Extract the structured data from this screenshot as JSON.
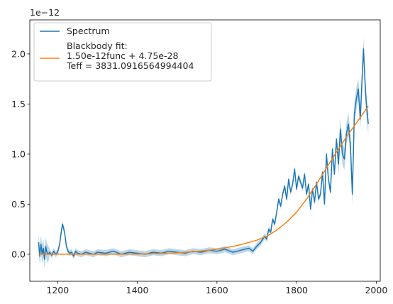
{
  "chart_data": {
    "type": "line",
    "title": "",
    "xlabel": "",
    "ylabel": "",
    "xlim": [
      1130,
      2010
    ],
    "ylim": [
      -0.27,
      2.34
    ],
    "y_scale_exponent": "1e−12",
    "x_ticks": [
      1200,
      1400,
      1600,
      1800,
      2000
    ],
    "x_tick_labels": [
      "1200",
      "1400",
      "1600",
      "1800",
      "2000"
    ],
    "y_ticks": [
      0.0,
      0.5,
      1.0,
      1.5,
      2.0
    ],
    "y_tick_labels": [
      "0.0",
      "0.5",
      "1.0",
      "1.5",
      "2.0"
    ],
    "grid": false,
    "legend_position": "top-left",
    "series": [
      {
        "name": "Spectrum",
        "color": "#1f77b4",
        "uncertainty_band": true,
        "x": [
          1152,
          1155,
          1158,
          1161,
          1164,
          1167,
          1170,
          1173,
          1176,
          1180,
          1185,
          1190,
          1195,
          1200,
          1205,
          1209,
          1212,
          1215,
          1218,
          1222,
          1226,
          1230,
          1235,
          1240,
          1245,
          1250,
          1260,
          1270,
          1280,
          1290,
          1300,
          1320,
          1340,
          1360,
          1380,
          1400,
          1420,
          1440,
          1460,
          1480,
          1500,
          1520,
          1540,
          1560,
          1580,
          1600,
          1620,
          1640,
          1660,
          1680,
          1690,
          1700,
          1710,
          1720,
          1725,
          1730,
          1735,
          1740,
          1745,
          1750,
          1755,
          1760,
          1765,
          1770,
          1775,
          1780,
          1785,
          1790,
          1795,
          1800,
          1805,
          1810,
          1815,
          1820,
          1825,
          1830,
          1835,
          1840,
          1845,
          1850,
          1855,
          1860,
          1865,
          1870,
          1875,
          1880,
          1885,
          1890,
          1895,
          1900,
          1905,
          1910,
          1915,
          1920,
          1925,
          1930,
          1935,
          1940,
          1945,
          1950,
          1955,
          1960,
          1965,
          1968,
          1972,
          1975,
          1980
        ],
        "y": [
          0.12,
          -0.02,
          0.1,
          0.0,
          0.06,
          -0.05,
          0.08,
          0.02,
          0.0,
          0.02,
          -0.01,
          0.03,
          0.0,
          0.02,
          0.1,
          0.22,
          0.3,
          0.26,
          0.2,
          0.08,
          0.03,
          0.01,
          0.02,
          -0.02,
          0.03,
          0.01,
          0.0,
          0.02,
          0.01,
          0.0,
          0.02,
          0.01,
          0.03,
          0.0,
          0.02,
          0.01,
          0.0,
          0.02,
          0.01,
          0.03,
          0.02,
          0.01,
          0.03,
          0.02,
          0.04,
          0.03,
          0.05,
          0.02,
          0.04,
          0.06,
          0.03,
          0.08,
          0.12,
          0.18,
          0.15,
          0.25,
          0.22,
          0.35,
          0.3,
          0.42,
          0.55,
          0.48,
          0.6,
          0.68,
          0.55,
          0.75,
          0.62,
          0.7,
          0.85,
          0.65,
          0.78,
          0.72,
          0.66,
          0.8,
          0.6,
          0.7,
          0.45,
          0.65,
          0.52,
          0.72,
          0.55,
          0.6,
          0.82,
          0.5,
          1.0,
          0.75,
          0.62,
          1.05,
          0.8,
          1.15,
          0.9,
          1.25,
          1.0,
          0.95,
          1.2,
          1.3,
          1.1,
          0.6,
          1.4,
          1.55,
          1.65,
          1.35,
          1.8,
          2.05,
          1.7,
          1.5,
          1.3
        ]
      },
      {
        "name": "Blackbody fit:\n1.50e-12func + 4.75e-28\nTeff = 3831.0916564994404",
        "name_lines": [
          "Blackbody fit:",
          "1.50e-12func + 4.75e-28",
          "Teff = 3831.0916564994404"
        ],
        "color": "#ff7f0e",
        "x": [
          1152,
          1200,
          1250,
          1300,
          1350,
          1400,
          1450,
          1500,
          1550,
          1600,
          1650,
          1700,
          1725,
          1750,
          1775,
          1800,
          1825,
          1850,
          1875,
          1900,
          1925,
          1950,
          1980
        ],
        "y": [
          0.0,
          0.0,
          0.0,
          0.0,
          0.0,
          0.002,
          0.006,
          0.014,
          0.028,
          0.05,
          0.085,
          0.14,
          0.18,
          0.24,
          0.32,
          0.42,
          0.55,
          0.7,
          0.86,
          1.02,
          1.17,
          1.31,
          1.48
        ]
      }
    ]
  }
}
